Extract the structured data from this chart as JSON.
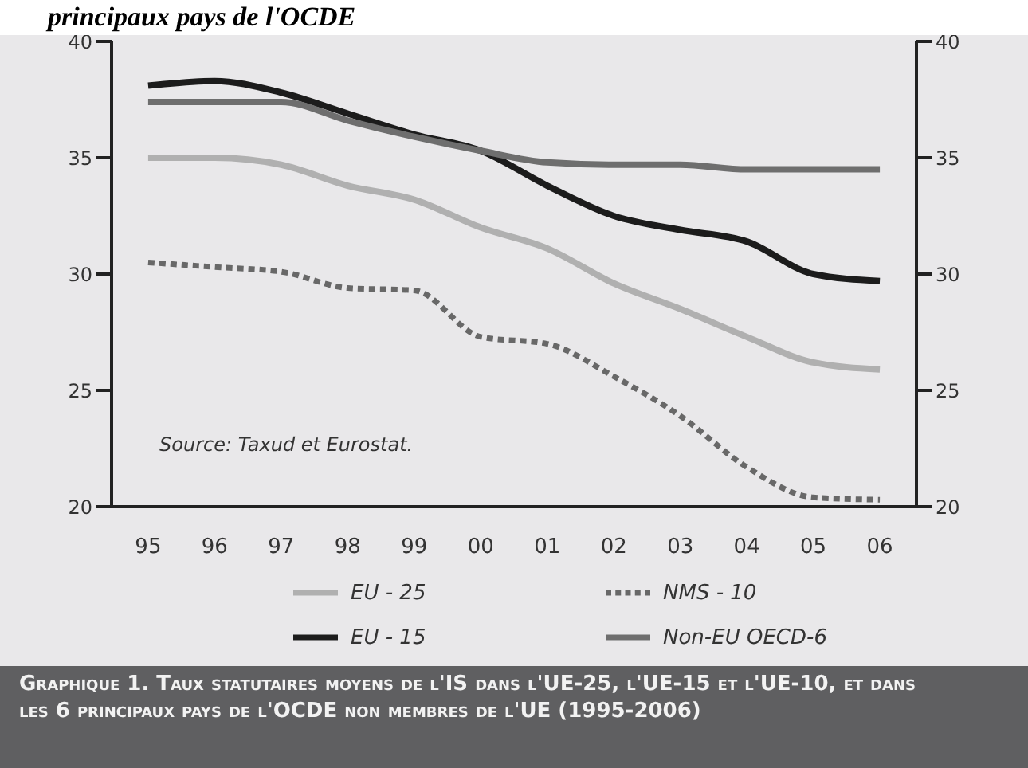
{
  "chart_data": {
    "type": "line",
    "title": "principaux pays de l'OCDE",
    "categories": [
      "95",
      "96",
      "97",
      "98",
      "99",
      "00",
      "01",
      "02",
      "03",
      "04",
      "05",
      "06"
    ],
    "series": [
      {
        "name": "EU - 25",
        "color": "#b0b0b0",
        "line_style": "solid",
        "values": [
          35.0,
          35.0,
          34.7,
          33.8,
          33.2,
          32.0,
          31.1,
          29.6,
          28.5,
          27.3,
          26.2,
          25.9
        ]
      },
      {
        "name": "NMS - 10",
        "color": "#686868",
        "line_style": "dotted",
        "values": [
          30.5,
          30.3,
          30.1,
          29.4,
          29.3,
          27.3,
          27.0,
          25.6,
          23.9,
          21.7,
          20.4,
          20.3
        ]
      },
      {
        "name": "EU - 15",
        "color": "#1c1c1c",
        "line_style": "solid",
        "values": [
          38.1,
          38.3,
          37.8,
          36.9,
          36.0,
          35.3,
          33.8,
          32.5,
          31.9,
          31.4,
          30.0,
          29.7
        ]
      },
      {
        "name": "Non-EU OECD-6",
        "color": "#6e6e6e",
        "line_style": "solid",
        "values": [
          37.4,
          37.4,
          37.4,
          36.6,
          35.9,
          35.3,
          34.8,
          34.7,
          34.7,
          34.5,
          34.5,
          34.5
        ]
      }
    ],
    "ylim": [
      20,
      40
    ],
    "yticks": [
      20,
      25,
      30,
      35,
      40
    ],
    "y2lim": [
      20,
      40
    ],
    "y2ticks": [
      20,
      25,
      30,
      35,
      40
    ],
    "grid": false,
    "legend": "bottom",
    "marker": "none",
    "annotations": [
      "Source: Taxud et Eurostat.",
      "Graphique 1. Taux statutaires moyens de l'IS dans l'UE-25, l'UE-15 et l'UE-10, et dans les 6 principaux pays de l'OCDE non membres de l'UE (1995-2006)"
    ]
  }
}
